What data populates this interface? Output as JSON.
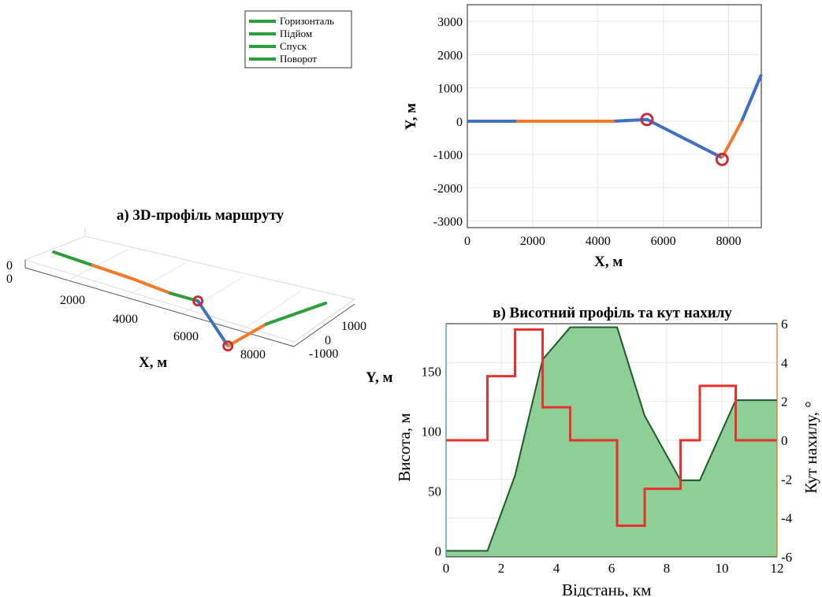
{
  "legend": {
    "items": [
      {
        "label": "Горизонталь",
        "color": "#2e9e3c"
      },
      {
        "label": "Підйом",
        "color": "#2e9e3c"
      },
      {
        "label": "Спуск",
        "color": "#2e9e3c"
      },
      {
        "label": "Поворот",
        "color": "#2e9e3c"
      }
    ]
  },
  "colors": {
    "horizontal": "#2e9e3c",
    "rise": "#f07a2a",
    "turn": "#3f6fc4",
    "marker": "#c0303a",
    "area_fill": "#8ecf98",
    "area_edge": "#1f5a28",
    "angle": "#e8312a",
    "left_axis": "#3f7fd0",
    "right_axis": "#e86a1a"
  },
  "chart_data": [
    {
      "id": "3d",
      "type": "line",
      "title": "а) 3D-профіль маршруту",
      "xlabel": "X, м",
      "ylabel": "Y, м",
      "zlabel": "",
      "x_ticks": [
        "2000",
        "4000",
        "6000",
        "8000"
      ],
      "y_ticks": [
        "1000",
        "0",
        "-1000"
      ],
      "z_ticks": [
        "0",
        "0"
      ],
      "segments": [
        {
          "kind": "horizontal",
          "points": [
            [
              0,
              0
            ],
            [
              1500,
              0
            ]
          ]
        },
        {
          "kind": "rise",
          "points": [
            [
              1500,
              0
            ],
            [
              3000,
              0
            ],
            [
              4500,
              -50
            ]
          ]
        },
        {
          "kind": "horizontal",
          "points": [
            [
              4500,
              -50
            ],
            [
              5500,
              0
            ]
          ]
        },
        {
          "kind": "turn",
          "points": [
            [
              5500,
              0
            ],
            [
              7800,
              -1100
            ]
          ]
        },
        {
          "kind": "rise",
          "points": [
            [
              7800,
              -1100
            ],
            [
              8100,
              0
            ]
          ]
        },
        {
          "kind": "horizontal",
          "points": [
            [
              8100,
              0
            ],
            [
              9000,
              1300
            ]
          ]
        }
      ],
      "markers": [
        [
          5500,
          0
        ],
        [
          7800,
          -1100
        ]
      ]
    },
    {
      "id": "xy",
      "type": "line",
      "title": "",
      "xlabel": "X, м",
      "ylabel": "Y, м",
      "xlim": [
        0,
        9000
      ],
      "ylim": [
        -3200,
        3500
      ],
      "x_ticks": [
        0,
        2000,
        4000,
        6000,
        8000
      ],
      "y_ticks": [
        3000,
        2000,
        1000,
        0,
        -1000,
        -2000,
        -3000
      ],
      "grid": true,
      "segments": [
        {
          "kind": "turn",
          "points": [
            [
              0,
              0
            ],
            [
              1500,
              0
            ]
          ]
        },
        {
          "kind": "rise",
          "points": [
            [
              1500,
              0
            ],
            [
              4500,
              0
            ]
          ]
        },
        {
          "kind": "turn",
          "points": [
            [
              4500,
              0
            ],
            [
              5500,
              50
            ],
            [
              7800,
              -1100
            ]
          ]
        },
        {
          "kind": "rise",
          "points": [
            [
              7800,
              -1100
            ],
            [
              8400,
              0
            ]
          ]
        },
        {
          "kind": "turn",
          "points": [
            [
              8400,
              0
            ],
            [
              9000,
              1400
            ]
          ]
        }
      ],
      "markers": [
        [
          5500,
          50
        ],
        [
          7800,
          -1150
        ]
      ]
    },
    {
      "id": "profile",
      "type": "area",
      "title": "в) Висотний профіль та кут нахилу",
      "xlabel": "Відстань, км",
      "ylabel_left": "Висота, м",
      "ylabel_right": "Кут нахилу, °",
      "xlim": [
        0,
        12
      ],
      "ylim_left": [
        -5,
        190
      ],
      "ylim_right": [
        -6,
        6
      ],
      "x_ticks": [
        0,
        2,
        4,
        6,
        8,
        10,
        12
      ],
      "y_ticks_left": [
        0,
        50,
        100,
        150
      ],
      "y_ticks_right": [
        6,
        4,
        2,
        0,
        -2,
        -4,
        -6
      ],
      "grid": true,
      "elevation": {
        "x": [
          0,
          1.5,
          2.5,
          3.5,
          4.5,
          6.2,
          7.2,
          8.5,
          9.2,
          10.5,
          12
        ],
        "y": [
          0,
          0,
          63,
          160,
          187,
          187,
          113,
          59,
          59,
          126,
          126
        ]
      },
      "slope_angle": {
        "x": [
          0,
          1.5,
          1.5,
          2.5,
          2.5,
          3.5,
          3.5,
          4.5,
          4.5,
          6.2,
          6.2,
          7.2,
          7.2,
          8.5,
          8.5,
          9.2,
          9.2,
          10.5,
          10.5,
          12
        ],
        "y": [
          0,
          0,
          3.3,
          3.3,
          5.7,
          5.7,
          1.7,
          1.7,
          0,
          0,
          -4.4,
          -4.4,
          -2.5,
          -2.5,
          0,
          0,
          2.8,
          2.8,
          0,
          0
        ]
      }
    }
  ]
}
